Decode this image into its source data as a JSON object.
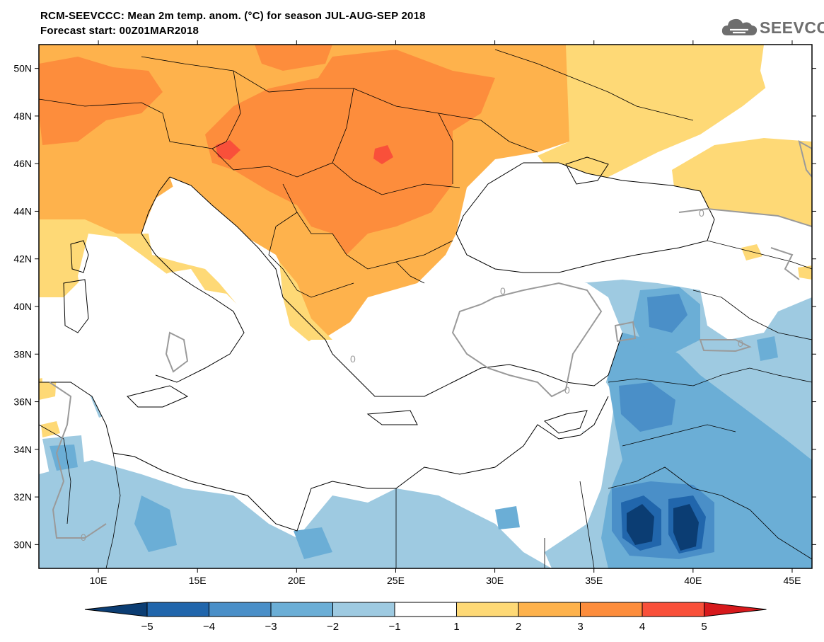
{
  "header": {
    "title": "RCM-SEEVCCC: Mean 2m temp. anom. (°C) for season JUL-AUG-SEP 2018",
    "subtitle": "Forecast start: 00Z01MAR2018"
  },
  "logo": {
    "text": "SEEVCCC",
    "icon": "cloud-icon"
  },
  "map": {
    "lon_range": [
      7,
      46
    ],
    "lat_range": [
      29,
      51
    ],
    "lat_ticks": [
      {
        "value": 50,
        "label": "50N"
      },
      {
        "value": 48,
        "label": "48N"
      },
      {
        "value": 46,
        "label": "46N"
      },
      {
        "value": 44,
        "label": "44N"
      },
      {
        "value": 42,
        "label": "42N"
      },
      {
        "value": 40,
        "label": "40N"
      },
      {
        "value": 38,
        "label": "38N"
      },
      {
        "value": 36,
        "label": "36N"
      },
      {
        "value": 34,
        "label": "34N"
      },
      {
        "value": 32,
        "label": "32N"
      },
      {
        "value": 30,
        "label": "30N"
      }
    ],
    "lon_ticks": [
      {
        "value": 10,
        "label": "10E"
      },
      {
        "value": 15,
        "label": "15E"
      },
      {
        "value": 20,
        "label": "20E"
      },
      {
        "value": 25,
        "label": "25E"
      },
      {
        "value": 30,
        "label": "30E"
      },
      {
        "value": 35,
        "label": "35E"
      },
      {
        "value": 40,
        "label": "40E"
      },
      {
        "value": 45,
        "label": "45E"
      }
    ],
    "contour_label": "0"
  },
  "colorbar": {
    "levels": [
      "−5",
      "−4",
      "−3",
      "−2",
      "−1",
      "1",
      "2",
      "3",
      "4",
      "5"
    ],
    "colors": [
      "#0b3d73",
      "#2166ac",
      "#4a8fc8",
      "#6baed6",
      "#9ecae1",
      "#ffffff",
      "#fed976",
      "#feb24c",
      "#fd8d3c",
      "#f9503a",
      "#d7191c"
    ],
    "units": "°C"
  }
}
